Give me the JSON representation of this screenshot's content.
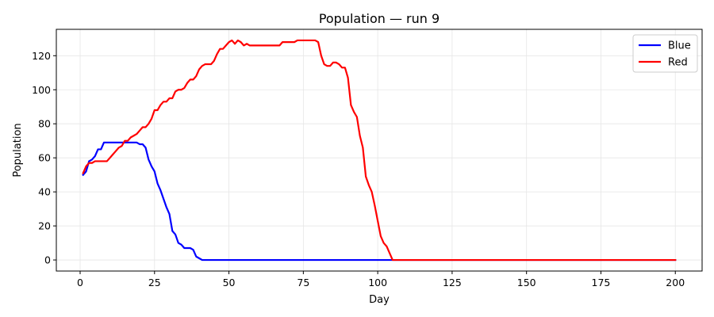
{
  "chart_data": {
    "type": "line",
    "title": "Population — run 9",
    "xlabel": "Day",
    "ylabel": "Population",
    "xlim": [
      -8,
      209
    ],
    "ylim": [
      -6.5,
      135.5
    ],
    "xticks": [
      0,
      25,
      50,
      75,
      100,
      125,
      150,
      175,
      200
    ],
    "yticks": [
      0,
      20,
      40,
      60,
      80,
      100,
      120
    ],
    "grid": true,
    "legend_position": "top-right",
    "series": [
      {
        "name": "Blue",
        "color": "#0000ff",
        "points": [
          [
            1,
            50
          ],
          [
            2,
            52
          ],
          [
            3,
            58
          ],
          [
            4,
            59
          ],
          [
            5,
            61
          ],
          [
            6,
            65
          ],
          [
            7,
            65
          ],
          [
            8,
            69
          ],
          [
            9,
            69
          ],
          [
            10,
            69
          ],
          [
            15,
            69
          ],
          [
            18,
            69
          ],
          [
            19,
            69
          ],
          [
            20,
            68
          ],
          [
            21,
            68
          ],
          [
            22,
            66
          ],
          [
            23,
            59
          ],
          [
            24,
            55
          ],
          [
            25,
            52
          ],
          [
            26,
            45
          ],
          [
            27,
            41
          ],
          [
            28,
            36
          ],
          [
            29,
            31
          ],
          [
            30,
            27
          ],
          [
            31,
            17
          ],
          [
            32,
            15
          ],
          [
            33,
            10
          ],
          [
            34,
            9
          ],
          [
            35,
            7
          ],
          [
            36,
            7
          ],
          [
            37,
            7
          ],
          [
            38,
            6
          ],
          [
            39,
            2
          ],
          [
            40,
            1
          ],
          [
            41,
            0
          ],
          [
            200,
            0
          ]
        ]
      },
      {
        "name": "Red",
        "color": "#ff0000",
        "points": [
          [
            1,
            51
          ],
          [
            2,
            55
          ],
          [
            3,
            57
          ],
          [
            4,
            57
          ],
          [
            5,
            58
          ],
          [
            6,
            58
          ],
          [
            7,
            58
          ],
          [
            8,
            58
          ],
          [
            9,
            58
          ],
          [
            10,
            60
          ],
          [
            11,
            62
          ],
          [
            12,
            64
          ],
          [
            13,
            66
          ],
          [
            14,
            67
          ],
          [
            15,
            70
          ],
          [
            16,
            70
          ],
          [
            17,
            72
          ],
          [
            18,
            73
          ],
          [
            19,
            74
          ],
          [
            20,
            76
          ],
          [
            21,
            78
          ],
          [
            22,
            78
          ],
          [
            23,
            80
          ],
          [
            24,
            83
          ],
          [
            25,
            88
          ],
          [
            26,
            88
          ],
          [
            27,
            91
          ],
          [
            28,
            93
          ],
          [
            29,
            93
          ],
          [
            30,
            95
          ],
          [
            31,
            95
          ],
          [
            32,
            99
          ],
          [
            33,
            100
          ],
          [
            34,
            100
          ],
          [
            35,
            101
          ],
          [
            36,
            104
          ],
          [
            37,
            106
          ],
          [
            38,
            106
          ],
          [
            39,
            108
          ],
          [
            40,
            112
          ],
          [
            41,
            114
          ],
          [
            42,
            115
          ],
          [
            43,
            115
          ],
          [
            44,
            115
          ],
          [
            45,
            117
          ],
          [
            46,
            121
          ],
          [
            47,
            124
          ],
          [
            48,
            124
          ],
          [
            49,
            126
          ],
          [
            50,
            128
          ],
          [
            51,
            129
          ],
          [
            52,
            127
          ],
          [
            53,
            129
          ],
          [
            54,
            128
          ],
          [
            55,
            126
          ],
          [
            56,
            127
          ],
          [
            57,
            126
          ],
          [
            60,
            126
          ],
          [
            65,
            126
          ],
          [
            67,
            126
          ],
          [
            68,
            128
          ],
          [
            70,
            128
          ],
          [
            72,
            128
          ],
          [
            73,
            129
          ],
          [
            75,
            129
          ],
          [
            78,
            129
          ],
          [
            79,
            129
          ],
          [
            80,
            128
          ],
          [
            81,
            120
          ],
          [
            82,
            115
          ],
          [
            83,
            114
          ],
          [
            84,
            114
          ],
          [
            85,
            116
          ],
          [
            86,
            116
          ],
          [
            87,
            115
          ],
          [
            88,
            113
          ],
          [
            89,
            113
          ],
          [
            90,
            107
          ],
          [
            91,
            91
          ],
          [
            92,
            87
          ],
          [
            93,
            84
          ],
          [
            94,
            73
          ],
          [
            95,
            66
          ],
          [
            96,
            49
          ],
          [
            97,
            44
          ],
          [
            98,
            40
          ],
          [
            99,
            32
          ],
          [
            100,
            23
          ],
          [
            101,
            14
          ],
          [
            102,
            10
          ],
          [
            103,
            8
          ],
          [
            104,
            4
          ],
          [
            105,
            0
          ],
          [
            200,
            0
          ]
        ]
      }
    ]
  }
}
